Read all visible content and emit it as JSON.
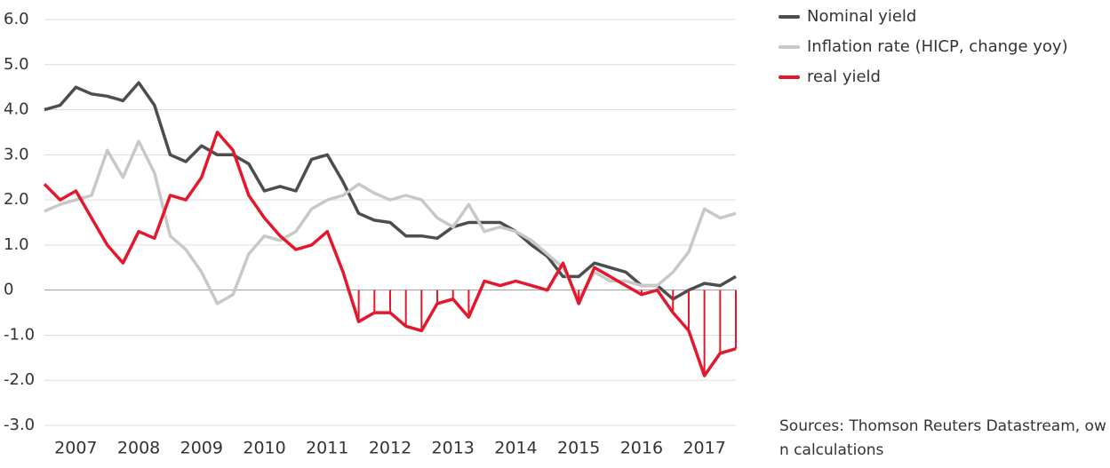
{
  "chart_data": {
    "type": "line",
    "source": "Sources: Thomson Reuters Datastream, own calculations",
    "x": [
      2007,
      2007.25,
      2007.5,
      2007.75,
      2008,
      2008.25,
      2008.5,
      2008.75,
      2009,
      2009.25,
      2009.5,
      2009.75,
      2010,
      2010.25,
      2010.5,
      2010.75,
      2011,
      2011.25,
      2011.5,
      2011.75,
      2012,
      2012.25,
      2012.5,
      2012.75,
      2013,
      2013.25,
      2013.5,
      2013.75,
      2014,
      2014.25,
      2014.5,
      2014.75,
      2015,
      2015.25,
      2015.5,
      2015.75,
      2016,
      2016.25,
      2016.5,
      2016.75,
      2017,
      2017.25,
      2017.5,
      2017.75,
      2018
    ],
    "series": [
      {
        "name": "Nominal yield",
        "color": "#4d4d4d",
        "values": [
          4.0,
          4.1,
          4.5,
          4.35,
          4.3,
          4.2,
          4.6,
          4.1,
          3.0,
          2.85,
          3.2,
          3.0,
          3.0,
          2.8,
          2.2,
          2.3,
          2.2,
          2.9,
          3.0,
          2.4,
          1.7,
          1.55,
          1.5,
          1.2,
          1.2,
          1.15,
          1.4,
          1.5,
          1.5,
          1.5,
          1.3,
          1.0,
          0.75,
          0.3,
          0.3,
          0.6,
          0.5,
          0.4,
          0.1,
          0.1,
          -0.2,
          0.0,
          0.15,
          0.1,
          0.3
        ]
      },
      {
        "name": "Inflation rate (HICP, change yoy)",
        "color": "#c8c8c8",
        "values": [
          1.75,
          1.9,
          2.0,
          2.1,
          3.1,
          2.5,
          3.3,
          2.6,
          1.2,
          0.9,
          0.4,
          -0.3,
          -0.1,
          0.8,
          1.2,
          1.1,
          1.3,
          1.8,
          2.0,
          2.1,
          2.35,
          2.15,
          2.0,
          2.1,
          2.0,
          1.6,
          1.4,
          1.9,
          1.3,
          1.4,
          1.3,
          1.1,
          0.8,
          0.5,
          -0.2,
          0.4,
          0.2,
          0.2,
          0.1,
          0.1,
          0.4,
          0.85,
          1.8,
          1.6,
          1.7
        ]
      },
      {
        "name": "real yield",
        "color": "#e3182d",
        "values": [
          2.35,
          2.0,
          2.2,
          1.6,
          1.0,
          0.6,
          1.3,
          1.15,
          2.1,
          2.0,
          2.5,
          3.5,
          3.1,
          2.1,
          1.6,
          1.2,
          0.9,
          1.0,
          1.3,
          0.4,
          -0.7,
          -0.5,
          -0.5,
          -0.8,
          -0.9,
          -0.3,
          -0.2,
          -0.6,
          0.2,
          0.1,
          0.2,
          0.1,
          0.0,
          0.6,
          -0.3,
          0.5,
          0.3,
          0.1,
          -0.1,
          0.0,
          -0.5,
          -0.9,
          -1.9,
          -1.4,
          -1.3
        ]
      }
    ],
    "xlim": [
      2007,
      2018
    ],
    "xticks": [
      {
        "value": 2007.5,
        "label": "2007"
      },
      {
        "value": 2008.5,
        "label": "2008"
      },
      {
        "value": 2009.5,
        "label": "2009"
      },
      {
        "value": 2010.5,
        "label": "2010"
      },
      {
        "value": 2011.5,
        "label": "2011"
      },
      {
        "value": 2012.5,
        "label": "2012"
      },
      {
        "value": 2013.5,
        "label": "2013"
      },
      {
        "value": 2014.5,
        "label": "2014"
      },
      {
        "value": 2015.5,
        "label": "2015"
      },
      {
        "value": 2016.5,
        "label": "2016"
      },
      {
        "value": 2017.5,
        "label": "2017"
      }
    ],
    "ylim": [
      -3,
      6
    ],
    "yticks": [
      {
        "value": 6,
        "label": "6.0"
      },
      {
        "value": 5,
        "label": "5.0"
      },
      {
        "value": 4,
        "label": "4.0"
      },
      {
        "value": 3,
        "label": "3.0"
      },
      {
        "value": 2,
        "label": "2.0"
      },
      {
        "value": 1,
        "label": "1.0"
      },
      0,
      {
        "value": -1,
        "label": "-1.0"
      },
      {
        "value": -2,
        "label": "-2.0"
      },
      {
        "value": -3,
        "label": "-3.0"
      }
    ],
    "grid": true
  }
}
